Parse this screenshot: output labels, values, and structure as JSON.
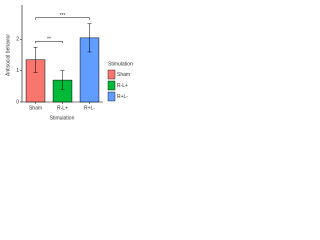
{
  "chart_data": {
    "type": "bar",
    "x_label": "Stimulation",
    "y_label": "Antisocial behavior",
    "categories": [
      "Sham",
      "R-L+",
      "R+L-"
    ],
    "values": [
      1.35,
      0.7,
      2.05
    ],
    "errors": [
      0.4,
      0.3,
      0.45
    ],
    "colors": [
      "#F8766D",
      "#00BA38",
      "#619CFF"
    ],
    "ylim": [
      0,
      3.1
    ],
    "yticks": [
      0,
      1,
      2
    ],
    "legend_title": "Stimulation",
    "annotations": [
      {
        "text": "**",
        "groups": [
          "Sham",
          "R-L+"
        ]
      },
      {
        "text": "***",
        "groups": [
          "Sham",
          "R+L-"
        ]
      }
    ]
  }
}
